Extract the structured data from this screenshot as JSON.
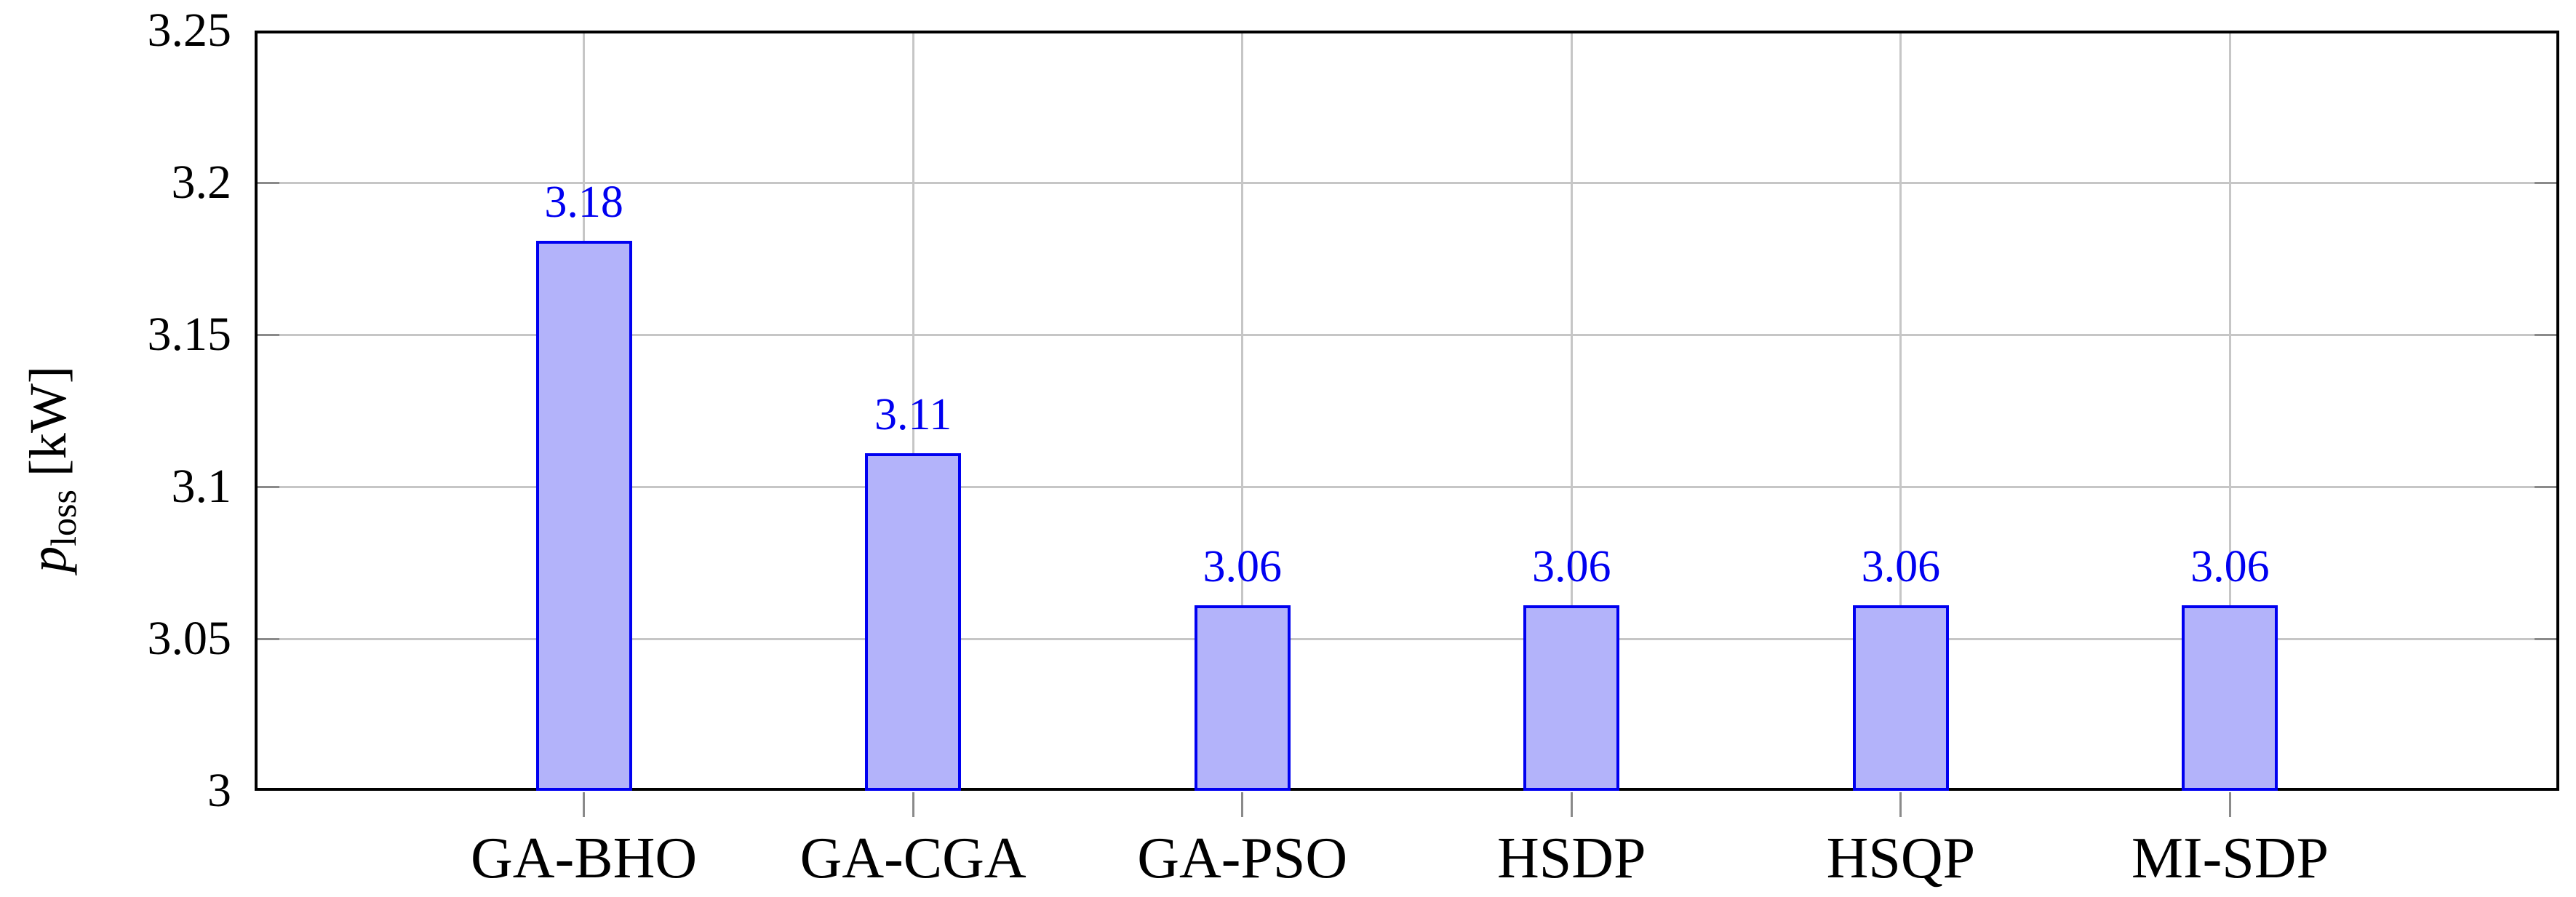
{
  "chart_data": {
    "type": "bar",
    "title": "",
    "categories": [
      "GA-BHO",
      "GA-CGA",
      "GA-PSO",
      "HSDP",
      "HSQP",
      "MI-SDP"
    ],
    "values": [
      3.18,
      3.11,
      3.06,
      3.06,
      3.06,
      3.06
    ],
    "bar_labels": [
      "3.18",
      "3.11",
      "3.06",
      "3.06",
      "3.06",
      "3.06"
    ],
    "ylabel": {
      "var": "p",
      "sub": "loss",
      "unit": " [kW]"
    },
    "xlabel": "",
    "ylim": [
      3.0,
      3.25
    ],
    "yticks": [
      3.0,
      3.05,
      3.1,
      3.15,
      3.2,
      3.25
    ],
    "ytick_labels": [
      "3",
      "3.05",
      "3.1",
      "3.15",
      "3.2",
      "3.25"
    ],
    "grid": "on",
    "legend": "none",
    "colors": {
      "bar_fill": "#b3b3fa",
      "bar_border": "#0000f0",
      "value_label": "#0000f0",
      "grid": "#c6c6c6",
      "tick": "#8a8a8a",
      "axis": "#000000"
    }
  }
}
